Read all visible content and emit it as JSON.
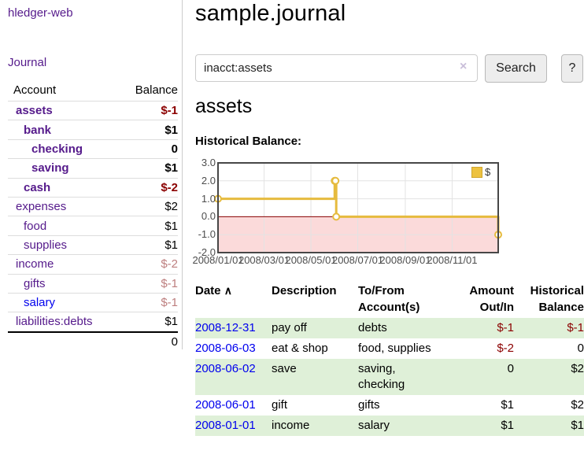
{
  "colors": {
    "link_purple": "#551a8b",
    "link_blue": "#0000ee",
    "negative_dark": "#8b0000",
    "negative_light": "#bd7e7e",
    "row_stripe_green": "#dff0d8",
    "chart_series_yellow": "#e6bb3e"
  },
  "sidebar": {
    "app_title": "hledger-web",
    "nav_journal": "Journal",
    "accounts_header": {
      "account": "Account",
      "balance": "Balance"
    },
    "accounts": [
      {
        "name": "assets",
        "depth": 0,
        "bold": true,
        "link": "purple",
        "balance": "$-1",
        "balance_style": "neg-dark"
      },
      {
        "name": "bank",
        "depth": 1,
        "bold": true,
        "link": "purple",
        "balance": "$1",
        "balance_style": "pos"
      },
      {
        "name": "checking",
        "depth": 2,
        "bold": true,
        "link": "purple",
        "balance": "0",
        "balance_style": "pos"
      },
      {
        "name": "saving",
        "depth": 2,
        "bold": true,
        "link": "purple",
        "balance": "$1",
        "balance_style": "pos"
      },
      {
        "name": "cash",
        "depth": 1,
        "bold": true,
        "link": "purple",
        "balance": "$-2",
        "balance_style": "neg-dark"
      },
      {
        "name": "expenses",
        "depth": 0,
        "bold": false,
        "link": "purple",
        "balance": "$2",
        "balance_style": "pos"
      },
      {
        "name": "food",
        "depth": 1,
        "bold": false,
        "link": "purple",
        "balance": "$1",
        "balance_style": "pos"
      },
      {
        "name": "supplies",
        "depth": 1,
        "bold": false,
        "link": "purple",
        "balance": "$1",
        "balance_style": "pos"
      },
      {
        "name": "income",
        "depth": 0,
        "bold": false,
        "link": "purple",
        "balance": "$-2",
        "balance_style": "neg-light"
      },
      {
        "name": "gifts",
        "depth": 1,
        "bold": false,
        "link": "purple",
        "balance": "$-1",
        "balance_style": "neg-light"
      },
      {
        "name": "salary",
        "depth": 1,
        "bold": false,
        "link": "blue",
        "balance": "$-1",
        "balance_style": "neg-light"
      },
      {
        "name": "liabilities:debts",
        "depth": 0,
        "bold": false,
        "link": "purple",
        "balance": "$1",
        "balance_style": "pos"
      }
    ],
    "total": "0"
  },
  "main": {
    "title": "sample.journal",
    "search": {
      "value": "inacct:assets",
      "clear_icon": "×",
      "button": "Search",
      "help": "?"
    },
    "account_heading": "assets",
    "chart_title": "Historical Balance:"
  },
  "chart_data": {
    "type": "line",
    "step": true,
    "title": "Historical Balance:",
    "series": [
      {
        "name": "$",
        "points": [
          [
            "2008-01-01",
            1
          ],
          [
            "2008-06-01",
            2
          ],
          [
            "2008-06-02",
            2
          ],
          [
            "2008-06-03",
            0
          ],
          [
            "2008-12-31",
            -1
          ]
        ],
        "color": "#e6bb3e"
      }
    ],
    "x_range": [
      "2008-01-01",
      "2008-12-31"
    ],
    "ylim": [
      -2,
      3
    ],
    "y_ticks": [
      3.0,
      2.0,
      1.0,
      0.0,
      -1.0,
      -2.0
    ],
    "x_ticks": [
      "2008/01/01",
      "2008/03/01",
      "2008/05/01",
      "2008/07/01",
      "2008/09/01",
      "2008/11/01"
    ],
    "legend": {
      "label": "$",
      "position": "top-right"
    },
    "grid": true,
    "negative_region_fill": "#fbdada",
    "zero_line_color": "#8b0000"
  },
  "register": {
    "headers": {
      "date": "Date",
      "sort_icon": "∧",
      "description": "Description",
      "tofrom_line1": "To/From",
      "tofrom_line2": "Account(s)",
      "amount_line1": "Amount",
      "amount_line2": "Out/In",
      "hist_line1": "Historical",
      "hist_line2": "Balance"
    },
    "rows": [
      {
        "date": "2008-12-31",
        "description": "pay off",
        "accounts": "debts",
        "amount": "$-1",
        "amount_neg": true,
        "balance": "$-1",
        "balance_neg": true,
        "stripe": "green"
      },
      {
        "date": "2008-06-03",
        "description": "eat & shop",
        "accounts": "food, supplies",
        "amount": "$-2",
        "amount_neg": true,
        "balance": "0",
        "balance_neg": false,
        "stripe": "white"
      },
      {
        "date": "2008-06-02",
        "description": "save",
        "accounts": "saving,\nchecking",
        "amount": "0",
        "amount_neg": false,
        "balance": "$2",
        "balance_neg": false,
        "stripe": "green"
      },
      {
        "date": "2008-06-01",
        "description": "gift",
        "accounts": "gifts",
        "amount": "$1",
        "amount_neg": false,
        "balance": "$2",
        "balance_neg": false,
        "stripe": "white"
      },
      {
        "date": "2008-01-01",
        "description": "income",
        "accounts": "salary",
        "amount": "$1",
        "amount_neg": false,
        "balance": "$1",
        "balance_neg": false,
        "stripe": "green"
      }
    ]
  }
}
